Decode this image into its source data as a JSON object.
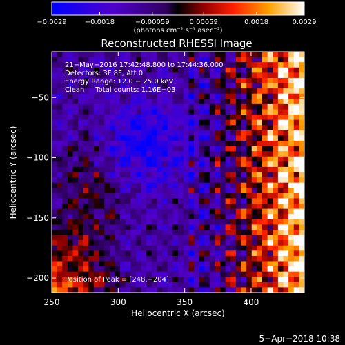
{
  "chart_data": {
    "type": "heatmap",
    "title": "Reconstructed RHESSI Image",
    "xlabel": "Heliocentric X (arcsec)",
    "ylabel": "Heliocentric Y (arcsec)",
    "xlim": [
      250,
      440
    ],
    "ylim": [
      -212,
      -12
    ],
    "xticks": [
      250,
      300,
      350,
      400
    ],
    "yticks": [
      -50,
      -100,
      -150,
      -200
    ],
    "xtick_labels": [
      "250",
      "300",
      "350",
      "400"
    ],
    "ytick_labels": [
      "−50",
      "−100",
      "−150",
      "−200"
    ],
    "colorbar": {
      "min": -0.0029,
      "max": 0.0029,
      "tick_values": [
        -0.0029,
        -0.0018,
        -0.00059,
        0.00059,
        0.0018,
        0.0029
      ],
      "tick_labels": [
        "−0.0029",
        "−0.0018",
        "−0.00059",
        "0.00059",
        "0.0018",
        "0.0029"
      ],
      "units_label": "(photons cm⁻² s⁻¹ asec⁻²)",
      "colors": [
        "#0000ff",
        "#3a00e0",
        "#6a00b0",
        "#000000",
        "#900000",
        "#ff2200",
        "#ffa500",
        "#ffff40",
        "#ffffff"
      ]
    },
    "annotations": [
      "21−May−2016 17:42:48.800 to 17:44:36.000",
      "Detectors: 3F 8F, Att 0",
      "Energy Range: 12.0 − 25.0 keV",
      "Clean     Total counts: 1.16E+03"
    ],
    "peak_annotation": "Position of Peak = [248,−204]",
    "peak": {
      "x": 248,
      "y": -204
    },
    "timestamp": "5−Apr−2018 10:38"
  }
}
